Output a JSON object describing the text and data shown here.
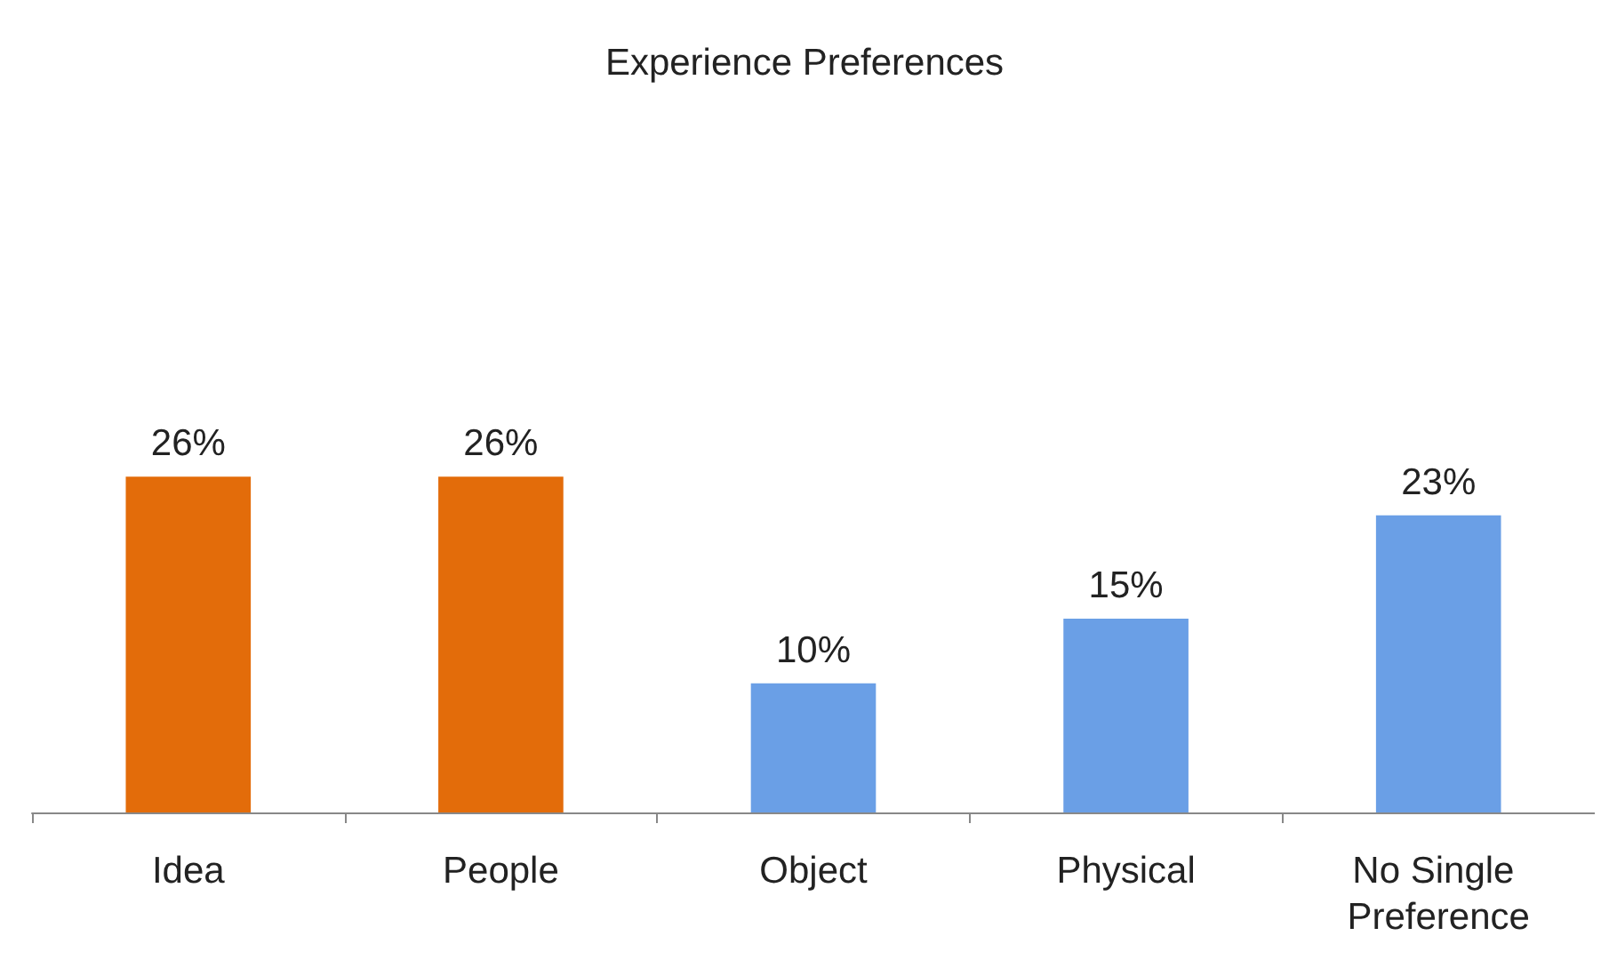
{
  "chart_data": {
    "type": "bar",
    "title": "Experience Preferences",
    "categories": [
      "Idea",
      "People",
      "Object",
      "Physical",
      "No Single Preference"
    ],
    "values": [
      26,
      26,
      10,
      15,
      23
    ],
    "colors": [
      "#e36c0a",
      "#e36c0a",
      "#6a9fe6",
      "#6a9fe6",
      "#6a9fe6"
    ],
    "value_labels": [
      "26%",
      "26%",
      "10%",
      "15%",
      "23%"
    ]
  }
}
